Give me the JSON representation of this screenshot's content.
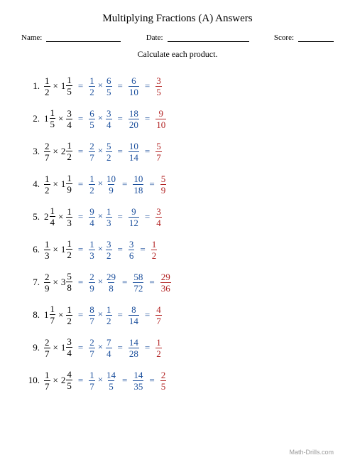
{
  "title": "Multiplying Fractions (A) Answers",
  "header": {
    "name_label": "Name:",
    "date_label": "Date:",
    "score_label": "Score:"
  },
  "instruction": "Calculate each product.",
  "footer": "Math-Drills.com",
  "colors": {
    "problem": "#000000",
    "work": "#1b4f9c",
    "answer": "#b22222"
  },
  "problems": [
    {
      "n": "1.",
      "a": {
        "w": "",
        "n": "1",
        "d": "2"
      },
      "b": {
        "w": "1",
        "n": "1",
        "d": "5"
      },
      "s1a": {
        "n": "1",
        "d": "2"
      },
      "s1b": {
        "n": "6",
        "d": "5"
      },
      "s2": {
        "n": "6",
        "d": "10"
      },
      "ans": {
        "n": "3",
        "d": "5"
      }
    },
    {
      "n": "2.",
      "a": {
        "w": "1",
        "n": "1",
        "d": "5"
      },
      "b": {
        "w": "",
        "n": "3",
        "d": "4"
      },
      "s1a": {
        "n": "6",
        "d": "5"
      },
      "s1b": {
        "n": "3",
        "d": "4"
      },
      "s2": {
        "n": "18",
        "d": "20"
      },
      "ans": {
        "n": "9",
        "d": "10"
      }
    },
    {
      "n": "3.",
      "a": {
        "w": "",
        "n": "2",
        "d": "7"
      },
      "b": {
        "w": "2",
        "n": "1",
        "d": "2"
      },
      "s1a": {
        "n": "2",
        "d": "7"
      },
      "s1b": {
        "n": "5",
        "d": "2"
      },
      "s2": {
        "n": "10",
        "d": "14"
      },
      "ans": {
        "n": "5",
        "d": "7"
      }
    },
    {
      "n": "4.",
      "a": {
        "w": "",
        "n": "1",
        "d": "2"
      },
      "b": {
        "w": "1",
        "n": "1",
        "d": "9"
      },
      "s1a": {
        "n": "1",
        "d": "2"
      },
      "s1b": {
        "n": "10",
        "d": "9"
      },
      "s2": {
        "n": "10",
        "d": "18"
      },
      "ans": {
        "n": "5",
        "d": "9"
      }
    },
    {
      "n": "5.",
      "a": {
        "w": "2",
        "n": "1",
        "d": "4"
      },
      "b": {
        "w": "",
        "n": "1",
        "d": "3"
      },
      "s1a": {
        "n": "9",
        "d": "4"
      },
      "s1b": {
        "n": "1",
        "d": "3"
      },
      "s2": {
        "n": "9",
        "d": "12"
      },
      "ans": {
        "n": "3",
        "d": "4"
      }
    },
    {
      "n": "6.",
      "a": {
        "w": "",
        "n": "1",
        "d": "3"
      },
      "b": {
        "w": "1",
        "n": "1",
        "d": "2"
      },
      "s1a": {
        "n": "1",
        "d": "3"
      },
      "s1b": {
        "n": "3",
        "d": "2"
      },
      "s2": {
        "n": "3",
        "d": "6"
      },
      "ans": {
        "n": "1",
        "d": "2"
      }
    },
    {
      "n": "7.",
      "a": {
        "w": "",
        "n": "2",
        "d": "9"
      },
      "b": {
        "w": "3",
        "n": "5",
        "d": "8"
      },
      "s1a": {
        "n": "2",
        "d": "9"
      },
      "s1b": {
        "n": "29",
        "d": "8"
      },
      "s2": {
        "n": "58",
        "d": "72"
      },
      "ans": {
        "n": "29",
        "d": "36"
      }
    },
    {
      "n": "8.",
      "a": {
        "w": "1",
        "n": "1",
        "d": "7"
      },
      "b": {
        "w": "",
        "n": "1",
        "d": "2"
      },
      "s1a": {
        "n": "8",
        "d": "7"
      },
      "s1b": {
        "n": "1",
        "d": "2"
      },
      "s2": {
        "n": "8",
        "d": "14"
      },
      "ans": {
        "n": "4",
        "d": "7"
      }
    },
    {
      "n": "9.",
      "a": {
        "w": "",
        "n": "2",
        "d": "7"
      },
      "b": {
        "w": "1",
        "n": "3",
        "d": "4"
      },
      "s1a": {
        "n": "2",
        "d": "7"
      },
      "s1b": {
        "n": "7",
        "d": "4"
      },
      "s2": {
        "n": "14",
        "d": "28"
      },
      "ans": {
        "n": "1",
        "d": "2"
      }
    },
    {
      "n": "10.",
      "a": {
        "w": "",
        "n": "1",
        "d": "7"
      },
      "b": {
        "w": "2",
        "n": "4",
        "d": "5"
      },
      "s1a": {
        "n": "1",
        "d": "7"
      },
      "s1b": {
        "n": "14",
        "d": "5"
      },
      "s2": {
        "n": "14",
        "d": "35"
      },
      "ans": {
        "n": "2",
        "d": "5"
      }
    }
  ]
}
